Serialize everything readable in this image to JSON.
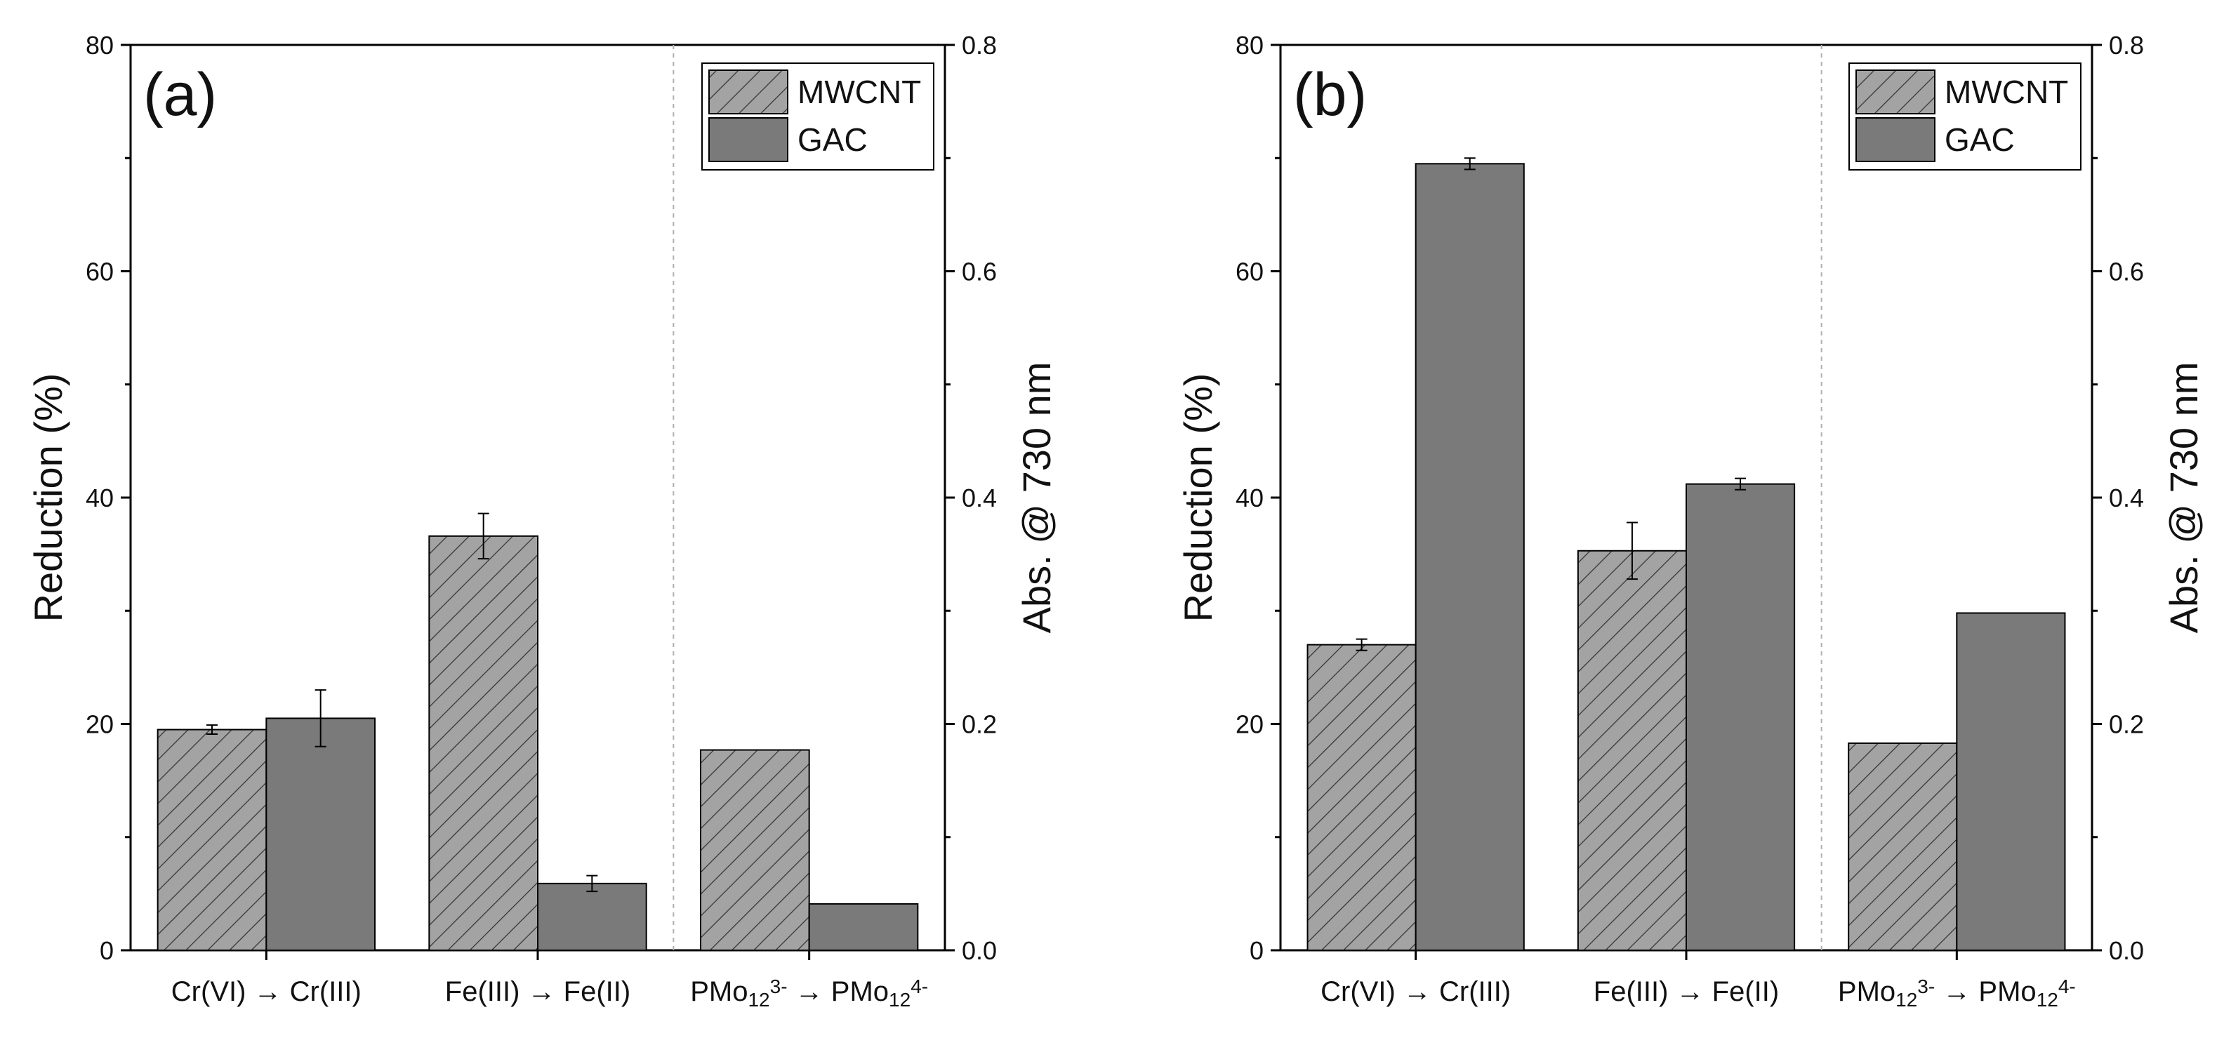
{
  "chart_data": [
    {
      "type": "bar",
      "panel_label": "(a)",
      "categories": [
        "Cr(VI) → Cr(III)",
        "Fe(III) → Fe(II)",
        "PMo"
      ],
      "category_rich": [
        [
          {
            "t": "Cr(VI) → Cr(III)",
            "s": "n"
          }
        ],
        [
          {
            "t": "Fe(III) → Fe(II)",
            "s": "n"
          }
        ],
        [
          {
            "t": "PMo",
            "s": "n"
          },
          {
            "t": "12",
            "s": "sub"
          },
          {
            "t": "3-",
            "s": "sup"
          },
          {
            "t": " → PMo",
            "s": "n"
          },
          {
            "t": "12",
            "s": "sub"
          },
          {
            "t": "4-",
            "s": "sup"
          }
        ]
      ],
      "series": [
        {
          "name": "MWCNT",
          "values": [
            19.5,
            36.6,
            17.7
          ],
          "errors": [
            0.4,
            2.0,
            0
          ],
          "pattern": "hatch"
        },
        {
          "name": "GAC",
          "values": [
            20.5,
            5.9,
            4.1
          ],
          "errors": [
            2.5,
            0.7,
            0
          ],
          "pattern": "solid"
        }
      ],
      "separator_after_category": 1,
      "ylabel": "Reduction (%)",
      "ylim": [
        0,
        80
      ],
      "yticks": [
        "0",
        "20",
        "40",
        "60",
        "80"
      ],
      "y2label": "Abs. @ 730 nm",
      "y2lim": [
        0,
        0.8
      ],
      "y2ticks": [
        "0.0",
        "0.2",
        "0.4",
        "0.6",
        "0.8"
      ],
      "legend_position": "top-right"
    },
    {
      "type": "bar",
      "panel_label": "(b)",
      "categories": [
        "Cr(VI) → Cr(III)",
        "Fe(III) → Fe(II)",
        "PMo"
      ],
      "category_rich": [
        [
          {
            "t": "Cr(VI) → Cr(III)",
            "s": "n"
          }
        ],
        [
          {
            "t": "Fe(III) → Fe(II)",
            "s": "n"
          }
        ],
        [
          {
            "t": "PMo",
            "s": "n"
          },
          {
            "t": "12",
            "s": "sub"
          },
          {
            "t": "3-",
            "s": "sup"
          },
          {
            "t": " → PMo",
            "s": "n"
          },
          {
            "t": "12",
            "s": "sub"
          },
          {
            "t": "4-",
            "s": "sup"
          }
        ]
      ],
      "series": [
        {
          "name": "MWCNT",
          "values": [
            27.0,
            35.3,
            18.3
          ],
          "errors": [
            0.5,
            2.5,
            0
          ],
          "pattern": "hatch"
        },
        {
          "name": "GAC",
          "values": [
            69.5,
            41.2,
            29.8
          ],
          "errors": [
            0.5,
            0.5,
            0
          ],
          "pattern": "solid"
        }
      ],
      "separator_after_category": 1,
      "ylabel": "Reduction (%)",
      "ylim": [
        0,
        80
      ],
      "yticks": [
        "0",
        "20",
        "40",
        "60",
        "80"
      ],
      "y2label": "Abs. @ 730 nm",
      "y2lim": [
        0,
        0.8
      ],
      "y2ticks": [
        "0.0",
        "0.2",
        "0.4",
        "0.6",
        "0.8"
      ],
      "legend_position": "top-right"
    }
  ],
  "colors": {
    "bar_fill": "#7a7a7a",
    "hatch_bg": "#a3a3a3",
    "hatch_line": "#333333",
    "axis": "#000000",
    "separator": "#b0b0b0"
  }
}
